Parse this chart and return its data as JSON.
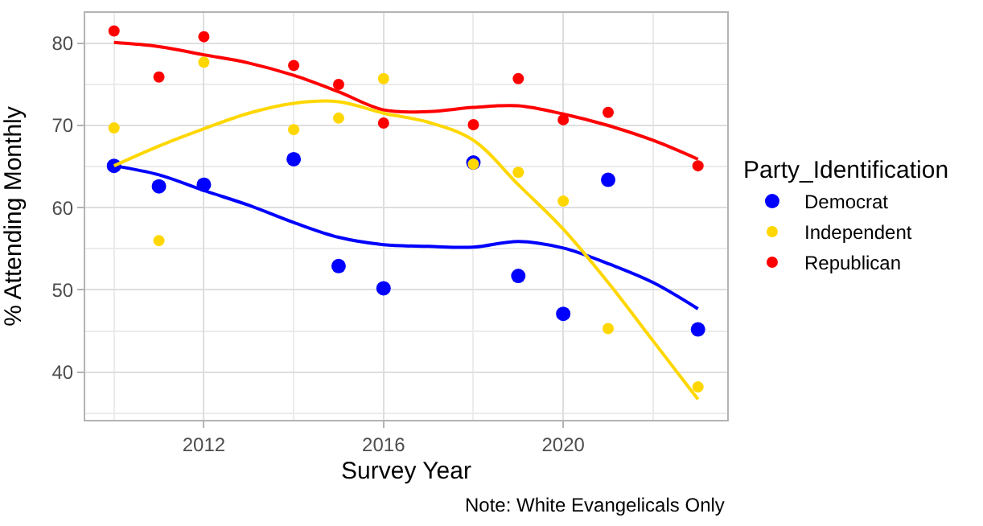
{
  "chart_data": {
    "type": "scatter",
    "xlabel": "Survey Year",
    "ylabel": "% Attending Monthly",
    "legend_title": "Party_Identification",
    "x": [
      2010,
      2011,
      2012,
      2014,
      2015,
      2016,
      2018,
      2019,
      2020,
      2021,
      2023
    ],
    "series": [
      {
        "name": "Democrat",
        "color": "#0000ff",
        "marker": "circle",
        "values": [
          65.1,
          62.6,
          62.8,
          65.9,
          52.9,
          50.2,
          65.5,
          51.7,
          47.1,
          63.4,
          45.2
        ]
      },
      {
        "name": "Independent",
        "color": "#ffd700",
        "marker": "circle",
        "values": [
          69.7,
          56.0,
          77.7,
          69.5,
          70.9,
          75.7,
          65.3,
          64.3,
          60.8,
          45.3,
          38.2
        ]
      },
      {
        "name": "Republican",
        "color": "#ff0000",
        "marker": "circle",
        "values": [
          81.5,
          75.9,
          80.8,
          77.3,
          75.0,
          70.3,
          70.1,
          75.7,
          70.7,
          71.6,
          65.1
        ]
      },
      {
        "type": "line",
        "color": "#0000ff",
        "x": [
          2010,
          2011,
          2012,
          2013,
          2014,
          2015,
          2016,
          2017,
          2018,
          2019,
          2020,
          2021,
          2022,
          2023
        ],
        "values": [
          65.1,
          64.0,
          62.1,
          60.3,
          58.2,
          56.4,
          55.5,
          55.3,
          55.2,
          55.9,
          55.1,
          53.2,
          50.9,
          47.7
        ]
      },
      {
        "type": "line",
        "color": "#ffd700",
        "x": [
          2010,
          2011,
          2012,
          2013,
          2014,
          2015,
          2016,
          2017,
          2018,
          2019,
          2020,
          2021,
          2022,
          2023
        ],
        "values": [
          65.1,
          67.5,
          69.6,
          71.5,
          72.7,
          72.9,
          71.5,
          70.4,
          68.2,
          62.8,
          57.4,
          50.9,
          43.8,
          36.7
        ]
      },
      {
        "type": "line",
        "color": "#ff0000",
        "x": [
          2010,
          2011,
          2012,
          2013,
          2014,
          2015,
          2016,
          2017,
          2018,
          2019,
          2020,
          2021,
          2022,
          2023
        ],
        "values": [
          80.1,
          79.6,
          78.6,
          77.6,
          76.1,
          74.1,
          71.9,
          71.7,
          72.2,
          72.4,
          71.4,
          70.0,
          68.2,
          65.9
        ]
      }
    ],
    "xlim": [
      2009.36,
      2023.65
    ],
    "xticks": [
      2012,
      2016,
      2020
    ],
    "ylim": [
      34.2,
      83.7
    ],
    "yticks": [
      40,
      50,
      60,
      70,
      80
    ],
    "grid": true,
    "legend": "right",
    "annotations": [
      "Note: White Evangelicals Only"
    ]
  }
}
